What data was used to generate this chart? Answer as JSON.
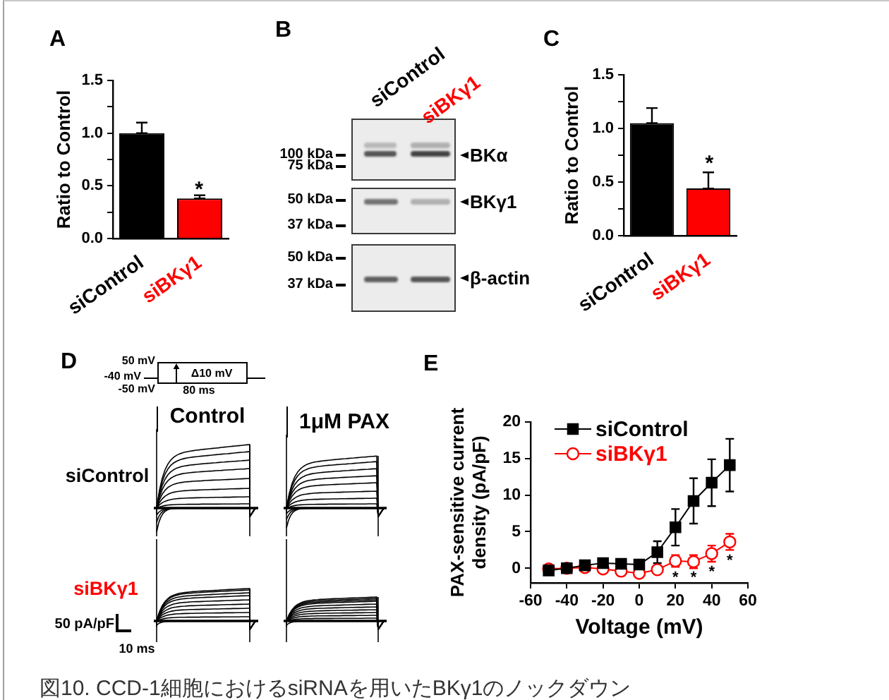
{
  "chart_data": [
    {
      "type": "bar",
      "title": "A",
      "ylabel": "Ratio to Control",
      "categories": [
        "siControl",
        "siBKγ1"
      ],
      "values": [
        1.0,
        0.38
      ],
      "colors": [
        "#000000",
        "#ff0000"
      ],
      "errors": [
        [
          1.0,
          1.1
        ],
        [
          0.38,
          0.41
        ]
      ],
      "ylim": [
        0,
        1.5
      ],
      "yticks": [
        {
          "value": 0,
          "label": "0.0"
        },
        {
          "value": 0.25,
          "label": null
        },
        {
          "value": 0.5,
          "label": "0.5"
        },
        {
          "value": 0.75,
          "label": null
        },
        {
          "value": 1,
          "label": "1.0"
        },
        {
          "value": 1.25,
          "label": null
        },
        {
          "value": 1.5,
          "label": "1.5"
        }
      ],
      "annotations": [
        "*"
      ]
    },
    {
      "type": "other",
      "title": "B",
      "categories": [
        "siControl",
        "siBKγ1"
      ],
      "colors": [
        "#000000",
        "#ff0000"
      ],
      "annotations": [
        "100 kDa",
        "75 kDa",
        "50 kDa",
        "37 kDa",
        "50 kDa",
        "37 kDa",
        "BKα",
        "BKγ1",
        "β-actin"
      ]
    },
    {
      "type": "bar",
      "title": "C",
      "ylabel": "Ratio to Control",
      "categories": [
        "siControl",
        "siBKγ1"
      ],
      "values": [
        1.05,
        0.44
      ],
      "colors": [
        "#000000",
        "#ff0000"
      ],
      "errors": [
        [
          1.05,
          1.19
        ],
        [
          0.44,
          0.59
        ]
      ],
      "ylim": [
        0,
        1.5
      ],
      "yticks": [
        {
          "value": 0,
          "label": "0.0"
        },
        {
          "value": 0.25,
          "label": null
        },
        {
          "value": 0.5,
          "label": "0.5"
        },
        {
          "value": 0.75,
          "label": null
        },
        {
          "value": 1,
          "label": "1.0"
        },
        {
          "value": 1.25,
          "label": null
        },
        {
          "value": 1.5,
          "label": "1.5"
        }
      ],
      "annotations": [
        "*"
      ]
    },
    {
      "type": "other",
      "title": "D",
      "categories": [
        "siControl",
        "siBKγ1"
      ],
      "colors": [
        "#000000",
        "#ff0000"
      ],
      "annotations": [
        "50 mV",
        "-40 mV",
        "-50 mV",
        "Δ10 mV",
        "80 ms",
        "Control",
        "1μM PAX",
        "50 pA/pF",
        "10 ms"
      ]
    },
    {
      "type": "line",
      "title": "E",
      "xlabel": "Voltage (mV)",
      "ylabel": "PAX-sensitive current density (pA/pF)",
      "x": [
        -50,
        -40,
        -30,
        -20,
        -10,
        0,
        10,
        20,
        30,
        40,
        50
      ],
      "series": [
        {
          "name": "siControl",
          "color": "#000000",
          "marker": "square",
          "values": [
            -0.3,
            0.0,
            0.4,
            0.7,
            0.6,
            0.5,
            2.2,
            5.6,
            9.2,
            11.7,
            14.1
          ],
          "errors": [
            null,
            null,
            null,
            null,
            null,
            null,
            1.5,
            2.5,
            3.1,
            3.2,
            3.6
          ]
        },
        {
          "name": "siBKγ1",
          "color": "#ff0000",
          "marker": "circle",
          "values": [
            -0.1,
            0.0,
            0.1,
            -0.1,
            -0.4,
            -0.7,
            -0.2,
            1.0,
            0.9,
            2.0,
            3.6
          ],
          "errors": [
            null,
            null,
            null,
            null,
            null,
            null,
            0.3,
            0.8,
            0.9,
            1.1,
            1.1
          ]
        }
      ],
      "xlim": [
        -60,
        60
      ],
      "xticks": [
        -60,
        -40,
        -20,
        0,
        20,
        40,
        60
      ],
      "ylim": [
        -2,
        20
      ],
      "yticks": [
        0,
        5,
        10,
        15,
        20
      ],
      "legend": "top left",
      "annotations": [
        {
          "text": "*",
          "x": 20,
          "y": -0.7
        },
        {
          "text": "*",
          "x": 30,
          "y": -0.7
        },
        {
          "text": "*",
          "x": 40,
          "y": 0.1
        },
        {
          "text": "*",
          "x": 50,
          "y": 1.6
        }
      ]
    },
    {
      "type": "other",
      "annotations": [
        "図10. CCD-1細胞におけるsiRNAを用いたBKγ1のノックダウン"
      ]
    }
  ]
}
